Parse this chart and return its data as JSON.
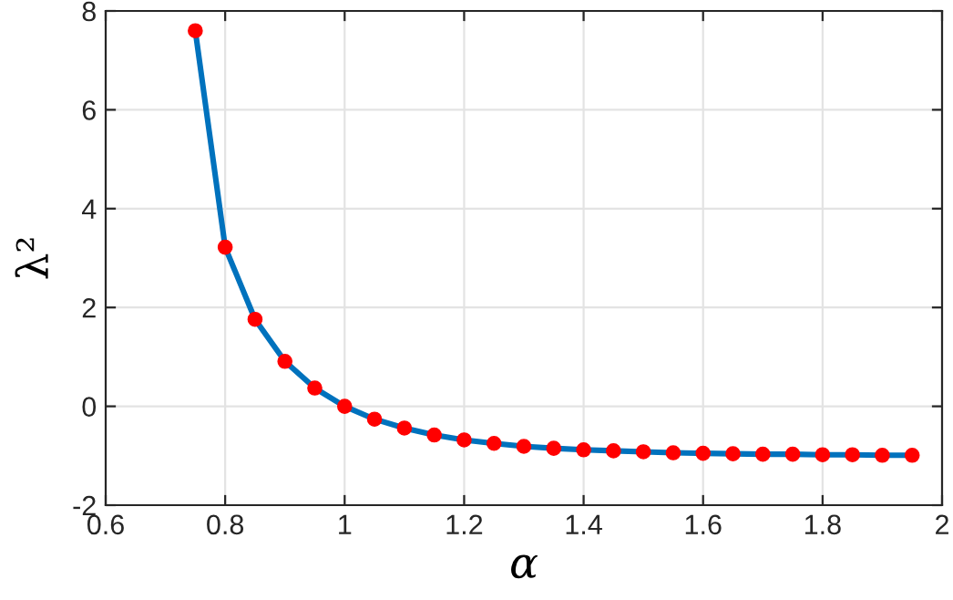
{
  "chart_data": {
    "type": "line",
    "xlabel": "α",
    "ylabel": "λ²",
    "x": [
      0.75,
      0.8,
      0.85,
      0.9,
      0.95,
      1.0,
      1.05,
      1.1,
      1.15,
      1.2,
      1.25,
      1.3,
      1.35,
      1.4,
      1.45,
      1.5,
      1.55,
      1.6,
      1.65,
      1.7,
      1.75,
      1.8,
      1.85,
      1.9,
      1.95
    ],
    "series": [
      {
        "color": "#0072bd",
        "values": [
          7.6,
          3.22,
          1.76,
          0.91,
          0.37,
          0,
          -0.26,
          -0.44,
          -0.58,
          -0.68,
          -0.75,
          -0.81,
          -0.85,
          -0.88,
          -0.9,
          -0.92,
          -0.94,
          -0.95,
          -0.96,
          -0.97,
          -0.97,
          -0.98,
          -0.98,
          -0.99,
          -0.99
        ]
      },
      {
        "type": "scatter",
        "marker": "circle",
        "color": "#ff0000",
        "values": [
          7.6,
          3.22,
          1.76,
          0.91,
          0.37,
          0,
          -0.26,
          -0.44,
          -0.58,
          -0.68,
          -0.75,
          -0.81,
          -0.85,
          -0.88,
          -0.9,
          -0.92,
          -0.94,
          -0.95,
          -0.96,
          -0.97,
          -0.97,
          -0.98,
          -0.98,
          -0.99,
          -0.99
        ]
      }
    ],
    "xlim": [
      0.6,
      2
    ],
    "xticks": [
      0.6,
      0.8,
      1,
      1.2,
      1.4,
      1.6,
      1.8,
      2
    ],
    "ylim": [
      -2,
      8
    ],
    "yticks": [
      -2,
      0,
      2,
      4,
      6,
      8
    ],
    "grid": true,
    "line_style": "solid"
  }
}
